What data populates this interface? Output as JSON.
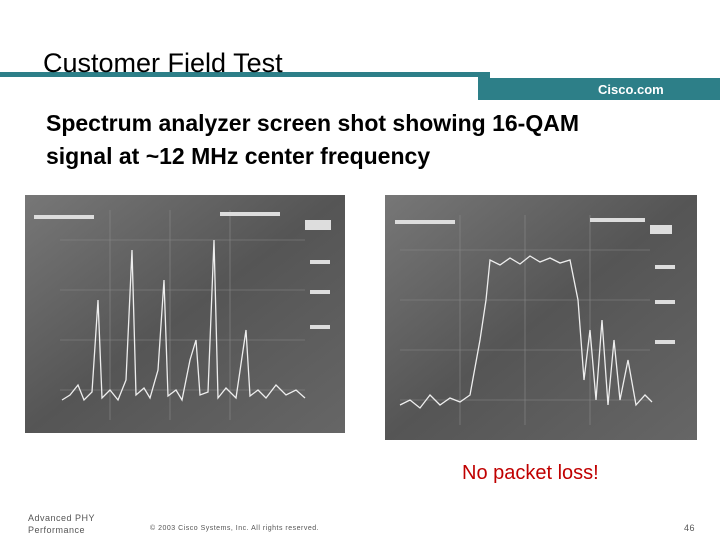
{
  "header": {
    "title": "Customer Field Test",
    "brand": "Cisco.com"
  },
  "body": {
    "lines": [
      "Spectrum analyzer screen shot showing 16-QAM",
      "signal at ~12 MHz center frequency"
    ]
  },
  "callout": "No packet loss!",
  "footer": {
    "left": [
      "Advanced PHY",
      "Performance"
    ],
    "copyright": "© 2003 Cisco Systems, Inc. All rights reserved.",
    "page": "46"
  }
}
